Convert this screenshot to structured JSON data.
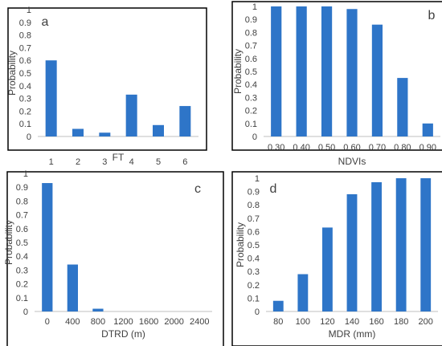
{
  "bar_color": "#2e75c8",
  "frame_color": "#000000",
  "chart_data": [
    {
      "id": "a",
      "type": "bar",
      "panel_label": "a",
      "categories": [
        "1",
        "2",
        "3",
        "4",
        "5",
        "6"
      ],
      "values": [
        0.6,
        0.06,
        0.03,
        0.33,
        0.09,
        0.24
      ],
      "xlabel": "FT",
      "ylabel": "Probability",
      "ylim": [
        0,
        1
      ],
      "yticks": [
        "0",
        "0.1",
        "0.2",
        "0.3",
        "0.4",
        "0.5",
        "0.6",
        "0.7",
        "0.8",
        "0.9",
        "1"
      ],
      "grid": false
    },
    {
      "id": "b",
      "type": "bar",
      "panel_label": "b",
      "categories": [
        "0.30",
        "0.40",
        "0.50",
        "0.60",
        "0.70",
        "0.80",
        "0.90"
      ],
      "values": [
        1.0,
        1.0,
        1.0,
        0.98,
        0.86,
        0.45,
        0.1
      ],
      "xlabel": "NDVIs",
      "ylabel": "Probability",
      "ylim": [
        0,
        1
      ],
      "yticks": [
        "0",
        "0.1",
        "0.2",
        "0.3",
        "0.4",
        "0.5",
        "0.6",
        "0.7",
        "0.8",
        "0.9",
        "1"
      ],
      "grid": false
    },
    {
      "id": "c",
      "type": "bar",
      "panel_label": "c",
      "categories": [
        "0",
        "400",
        "800",
        "1200",
        "1600",
        "2000",
        "2400"
      ],
      "values": [
        0.93,
        0.34,
        0.02,
        0,
        0,
        0,
        0
      ],
      "xlabel": "DTRD (m)",
      "ylabel": "Probability",
      "ylim": [
        0,
        1
      ],
      "yticks": [
        "0",
        "0.1",
        "0.2",
        "0.3",
        "0.4",
        "0.5",
        "0.6",
        "0.7",
        "0.8",
        "0.9",
        "1"
      ],
      "grid": false
    },
    {
      "id": "d",
      "type": "bar",
      "panel_label": "d",
      "categories": [
        "80",
        "100",
        "120",
        "140",
        "160",
        "180",
        "200"
      ],
      "values": [
        0.08,
        0.28,
        0.63,
        0.88,
        0.97,
        1.0,
        1.0
      ],
      "xlabel": "MDR (mm)",
      "ylabel": "Probability",
      "ylim": [
        0,
        1
      ],
      "yticks": [
        "0",
        "0.1",
        "0.2",
        "0.3",
        "0.4",
        "0.5",
        "0.6",
        "0.7",
        "0.8",
        "0.9",
        "1"
      ],
      "grid": false
    }
  ]
}
